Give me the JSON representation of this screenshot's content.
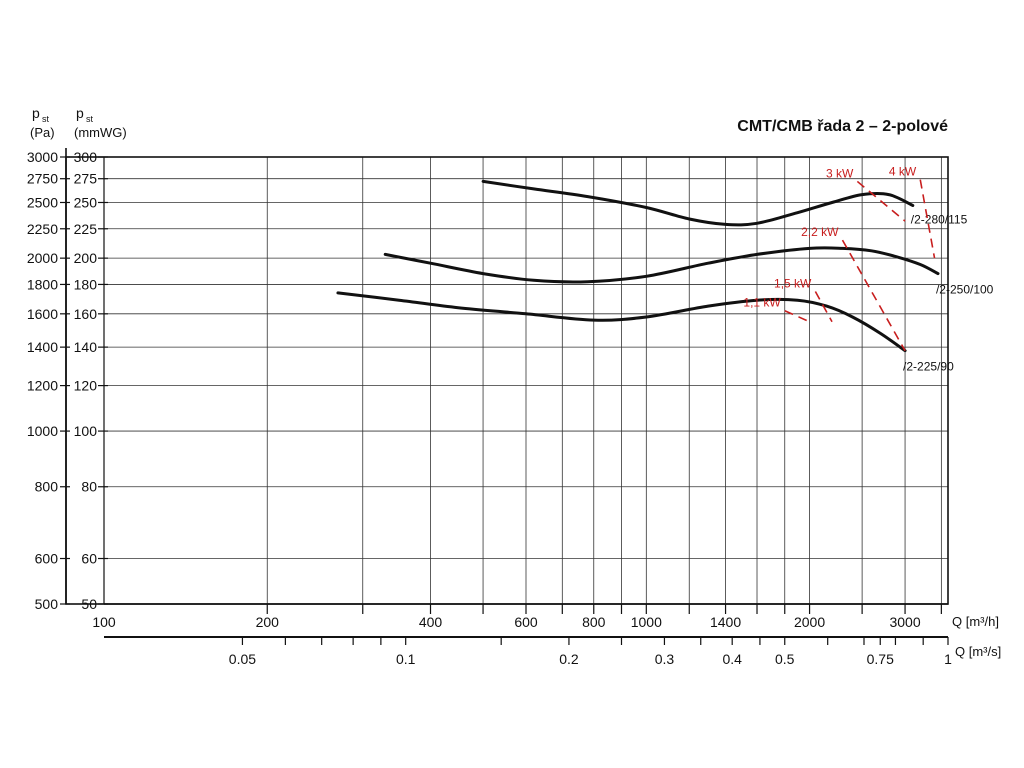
{
  "chart_data": {
    "type": "line",
    "title": "CMT/CMB řada 2 – 2-polové",
    "y_label_left_sym": "p",
    "y_label_left_sub": "st",
    "y_label_left_unit": "(Pa)",
    "y_label_right_sym": "p",
    "y_label_right_sub": "st",
    "y_label_right_unit": "(mmWG)",
    "x_label_top": "Q [m³/h]",
    "x_label_bottom": "Q [m³/s]",
    "scale": "log-log",
    "xlim_m3h": [
      100,
      3600
    ],
    "ylim_pa": [
      500,
      3000
    ],
    "grid": true,
    "y_ticks_pa": [
      "3000",
      "2750",
      "2500",
      "2250",
      "2000",
      "1800",
      "1600",
      "1400",
      "1200",
      "1000",
      "800",
      "600",
      "500"
    ],
    "y_ticks_mmwg": [
      "300",
      "275",
      "250",
      "225",
      "200",
      "180",
      "160",
      "140",
      "120",
      "100",
      "80",
      "60",
      "50"
    ],
    "x_ticks_m3h": [
      "100",
      "200",
      "400",
      "600",
      "800",
      "1000",
      "1400",
      "2000",
      "3000"
    ],
    "x_ticks_m3s": [
      "0.05",
      "0.1",
      "0.2",
      "0.3",
      "0.4",
      "0.5",
      "0.75",
      "1"
    ],
    "series": [
      {
        "name": "/2-280/115",
        "x": [
          500,
          620,
          780,
          1000,
          1200,
          1400,
          1600,
          1900,
          2200,
          2500,
          2800,
          3100
        ],
        "y": [
          2720,
          2640,
          2560,
          2450,
          2340,
          2290,
          2300,
          2400,
          2500,
          2580,
          2580,
          2470
        ]
      },
      {
        "name": "/2-250/100",
        "x": [
          330,
          400,
          500,
          620,
          780,
          1000,
          1300,
          1600,
          2000,
          2300,
          2600,
          2900,
          3200,
          3450
        ],
        "y": [
          2030,
          1960,
          1880,
          1830,
          1820,
          1860,
          1960,
          2030,
          2080,
          2080,
          2060,
          2010,
          1950,
          1880
        ]
      },
      {
        "name": "/2-225/90",
        "x": [
          270,
          350,
          450,
          600,
          800,
          1000,
          1300,
          1600,
          1900,
          2150,
          2400,
          2700,
          3000
        ],
        "y": [
          1740,
          1690,
          1640,
          1600,
          1560,
          1580,
          1650,
          1690,
          1690,
          1650,
          1580,
          1480,
          1380
        ]
      }
    ],
    "power_lines": [
      {
        "label": "1,1 kW",
        "from": [
          1800,
          1620
        ],
        "to": [
          2000,
          1550
        ]
      },
      {
        "label": "1,5 kW",
        "from": [
          2050,
          1750
        ],
        "to": [
          2200,
          1550
        ]
      },
      {
        "label": "2,2 kW",
        "from": [
          2300,
          2150
        ],
        "to": [
          3000,
          1380
        ]
      },
      {
        "label": "3 kW",
        "from": [
          2450,
          2720
        ],
        "to": [
          3000,
          2320
        ]
      },
      {
        "label": "4 kW",
        "from": [
          3200,
          2740
        ],
        "to": [
          3400,
          2000
        ]
      }
    ],
    "line_color": "#111111",
    "power_color": "#c81e1e"
  }
}
